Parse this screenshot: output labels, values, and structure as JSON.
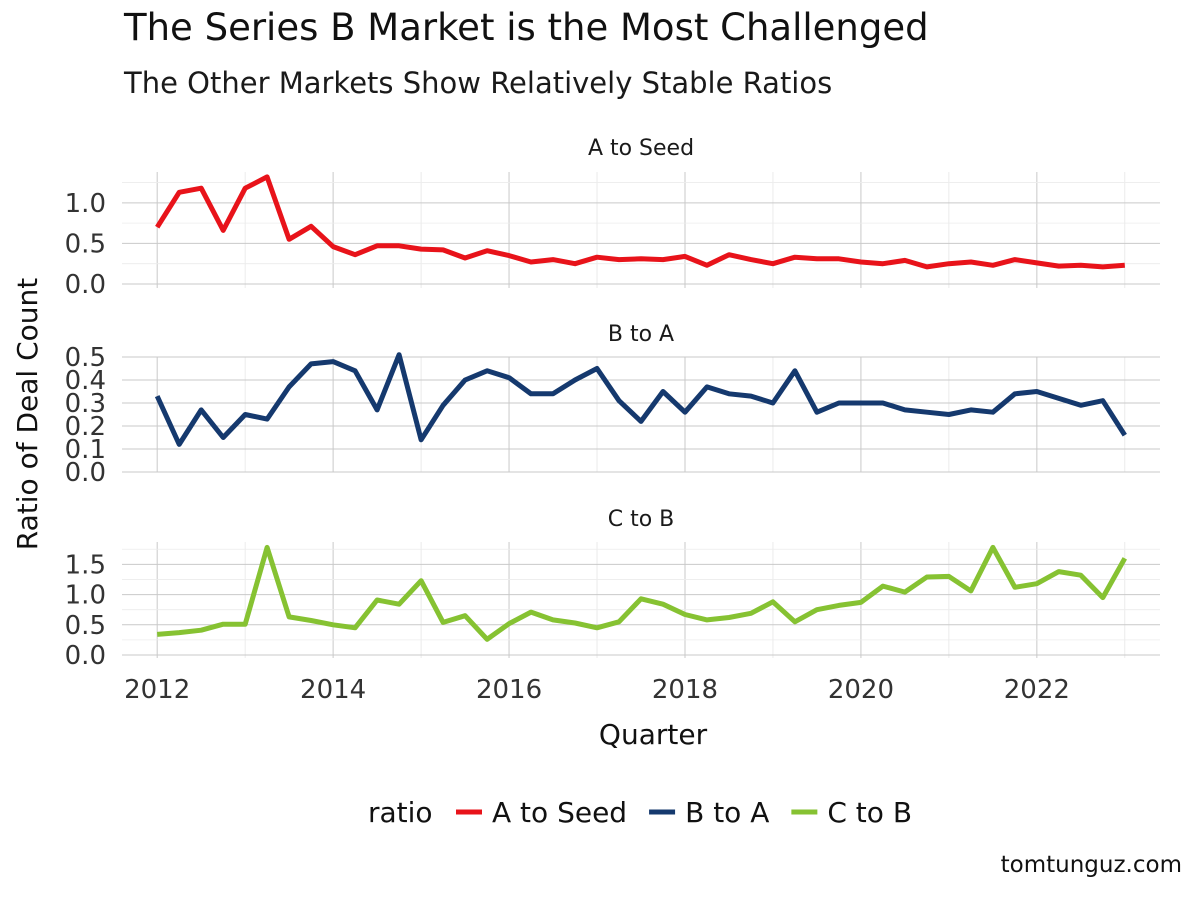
{
  "chart_data": {
    "type": "line",
    "title": "The Series B Market is the Most Challenged",
    "subtitle": "The Other Markets Show Relatively Stable Ratios",
    "xlabel": "Quarter",
    "ylabel": "Ratio of Deal Count",
    "legend": {
      "title": "ratio",
      "position": "bottom"
    },
    "caption": "tomtunguz.com",
    "xlim": [
      2011.6,
      2023.4
    ],
    "x_ticks": [
      2012,
      2014,
      2016,
      2018,
      2020,
      2022
    ],
    "x_tick_labels": [
      "2012",
      "2014",
      "2016",
      "2018",
      "2020",
      "2022"
    ],
    "x": [
      2012.0,
      2012.25,
      2012.5,
      2012.75,
      2013.0,
      2013.25,
      2013.5,
      2013.75,
      2014.0,
      2014.25,
      2014.5,
      2014.75,
      2015.0,
      2015.25,
      2015.5,
      2015.75,
      2016.0,
      2016.25,
      2016.5,
      2016.75,
      2017.0,
      2017.25,
      2017.5,
      2017.75,
      2018.0,
      2018.25,
      2018.5,
      2018.75,
      2019.0,
      2019.25,
      2019.5,
      2019.75,
      2020.0,
      2020.25,
      2020.5,
      2020.75,
      2021.0,
      2021.25,
      2021.5,
      2021.75,
      2022.0,
      2022.25,
      2022.5,
      2022.75,
      2023.0
    ],
    "series": [
      {
        "name": "A to Seed",
        "color": "#e8131a",
        "ylim": [
          -0.05,
          1.38
        ],
        "y_ticks": [
          0.0,
          0.5,
          1.0
        ],
        "y_tick_labels": [
          "0.0",
          "0.5",
          "1.0"
        ],
        "values": [
          0.7,
          1.13,
          1.18,
          0.66,
          1.18,
          1.32,
          0.55,
          0.71,
          0.46,
          0.36,
          0.47,
          0.47,
          0.43,
          0.42,
          0.32,
          0.41,
          0.35,
          0.27,
          0.3,
          0.25,
          0.33,
          0.3,
          0.31,
          0.3,
          0.34,
          0.23,
          0.36,
          0.3,
          0.25,
          0.33,
          0.31,
          0.31,
          0.27,
          0.25,
          0.29,
          0.21,
          0.25,
          0.27,
          0.23,
          0.3,
          0.26,
          0.22,
          0.23,
          0.21,
          0.23
        ]
      },
      {
        "name": "B to A",
        "color": "#15396e",
        "ylim": [
          0.0,
          0.5
        ],
        "y_ticks": [
          0.0,
          0.1,
          0.2,
          0.3,
          0.4,
          0.5
        ],
        "y_tick_labels": [
          "0.0",
          "0.1",
          "0.2",
          "0.3",
          "0.4",
          "0.5"
        ],
        "values": [
          0.33,
          0.12,
          0.27,
          0.15,
          0.25,
          0.23,
          0.37,
          0.47,
          0.48,
          0.44,
          0.27,
          0.51,
          0.14,
          0.29,
          0.4,
          0.44,
          0.41,
          0.34,
          0.34,
          0.4,
          0.45,
          0.31,
          0.22,
          0.35,
          0.26,
          0.37,
          0.34,
          0.33,
          0.3,
          0.44,
          0.26,
          0.3,
          0.3,
          0.3,
          0.27,
          0.26,
          0.25,
          0.27,
          0.26,
          0.34,
          0.35,
          0.32,
          0.29,
          0.31,
          0.16
        ]
      },
      {
        "name": "C to B",
        "color": "#86c232",
        "ylim": [
          -0.05,
          1.87
        ],
        "y_ticks": [
          0.0,
          0.5,
          1.0,
          1.5
        ],
        "y_tick_labels": [
          "0.0",
          "0.5",
          "1.0",
          "1.5"
        ],
        "values": [
          0.34,
          0.37,
          0.41,
          0.51,
          0.51,
          1.78,
          0.63,
          0.57,
          0.5,
          0.45,
          0.91,
          0.84,
          1.23,
          0.54,
          0.65,
          0.26,
          0.52,
          0.71,
          0.58,
          0.53,
          0.45,
          0.55,
          0.93,
          0.84,
          0.67,
          0.58,
          0.62,
          0.69,
          0.88,
          0.55,
          0.75,
          0.82,
          0.87,
          1.14,
          1.04,
          1.29,
          1.3,
          1.06,
          1.78,
          1.12,
          1.18,
          1.38,
          1.32,
          0.95,
          1.6
        ]
      }
    ],
    "grid": true
  }
}
